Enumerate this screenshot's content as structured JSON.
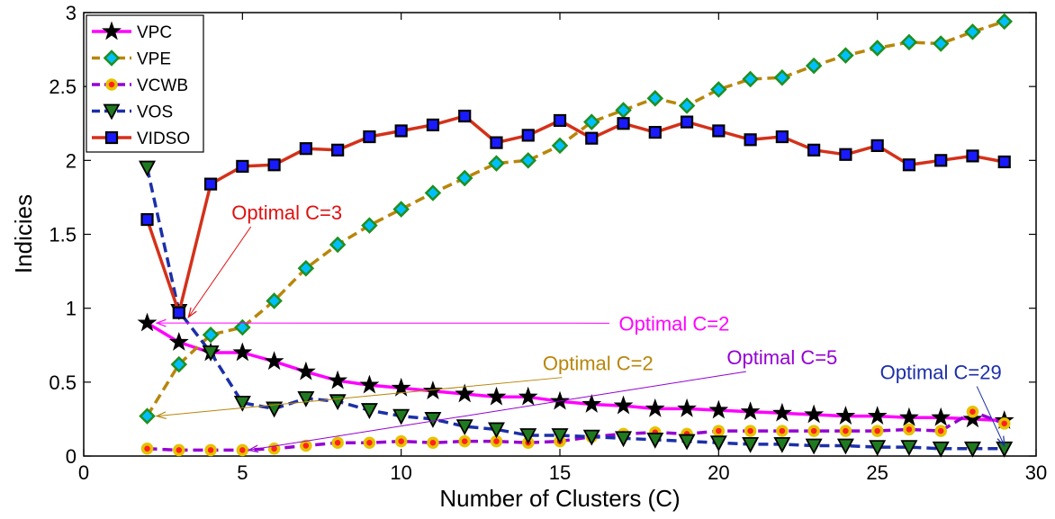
{
  "chart_data": {
    "type": "line",
    "xlabel": "Number of Clusters (C)",
    "ylabel": "Indicies",
    "xlim": [
      0,
      30
    ],
    "ylim": [
      0,
      3
    ],
    "xticks": [
      "0",
      "5",
      "10",
      "15",
      "20",
      "25",
      "30"
    ],
    "yticks": [
      "0",
      "0.5",
      "1",
      "1.5",
      "2",
      "2.5",
      "3"
    ],
    "x": [
      2,
      3,
      4,
      5,
      6,
      7,
      8,
      9,
      10,
      11,
      12,
      13,
      14,
      15,
      16,
      17,
      18,
      19,
      20,
      21,
      22,
      23,
      24,
      25,
      26,
      27,
      28,
      29
    ],
    "legend_position": "top-left",
    "series": [
      {
        "name": "VPC",
        "line_color": "#ff00ff",
        "marker": "star",
        "marker_face": "#000000",
        "dash": "solid",
        "values": [
          0.9,
          0.77,
          0.7,
          0.7,
          0.64,
          0.57,
          0.51,
          0.48,
          0.46,
          0.44,
          0.42,
          0.4,
          0.4,
          0.37,
          0.35,
          0.34,
          0.32,
          0.32,
          0.31,
          0.3,
          0.29,
          0.28,
          0.27,
          0.27,
          0.26,
          0.26,
          0.25,
          0.24
        ]
      },
      {
        "name": "VPE",
        "line_color": "#b8860b",
        "marker": "diamond",
        "marker_face": "#00bfff",
        "marker_edge": "#1f8f1f",
        "dash": "dashed",
        "values": [
          0.27,
          0.62,
          0.82,
          0.87,
          1.05,
          1.27,
          1.43,
          1.56,
          1.67,
          1.78,
          1.88,
          1.98,
          2.0,
          2.1,
          2.26,
          2.34,
          2.42,
          2.37,
          2.48,
          2.55,
          2.56,
          2.64,
          2.71,
          2.76,
          2.8,
          2.79,
          2.87,
          2.94
        ]
      },
      {
        "name": "VCWB",
        "line_color": "#9400d3",
        "marker": "circle",
        "marker_face": "#ff2020",
        "marker_edge": "#e6c200",
        "dash": "dashed",
        "values": [
          0.05,
          0.04,
          0.04,
          0.04,
          0.05,
          0.07,
          0.09,
          0.09,
          0.1,
          0.09,
          0.1,
          0.1,
          0.09,
          0.1,
          0.13,
          0.15,
          0.16,
          0.15,
          0.17,
          0.17,
          0.17,
          0.17,
          0.17,
          0.17,
          0.18,
          0.17,
          0.3,
          0.22
        ]
      },
      {
        "name": "VOS",
        "line_color": "#1c2fa8",
        "marker": "triangle-down",
        "marker_face": "#1f7a1f",
        "dash": "dashed",
        "values": [
          1.95,
          0.98,
          0.7,
          0.36,
          0.32,
          0.39,
          0.37,
          0.31,
          0.27,
          0.25,
          0.2,
          0.18,
          0.14,
          0.14,
          0.13,
          0.12,
          0.11,
          0.1,
          0.09,
          0.08,
          0.08,
          0.07,
          0.07,
          0.06,
          0.06,
          0.05,
          0.05,
          0.05
        ]
      },
      {
        "name": "VIDSO",
        "line_color": "#d4311a",
        "marker": "square",
        "marker_face": "#1a1aff",
        "dash": "solid",
        "values": [
          1.6,
          0.97,
          1.84,
          1.96,
          1.97,
          2.08,
          2.07,
          2.16,
          2.2,
          2.24,
          2.3,
          2.12,
          2.17,
          2.27,
          2.15,
          2.25,
          2.19,
          2.26,
          2.2,
          2.14,
          2.16,
          2.07,
          2.04,
          2.1,
          1.97,
          2.0,
          2.03,
          1.99
        ]
      }
    ],
    "annotations": [
      {
        "text": "Optimal C=3",
        "color": "#e01010",
        "text_x": 6.4,
        "text_y": 1.6,
        "arrow_to": [
          3.3,
          0.94
        ]
      },
      {
        "text": "Optimal C=2",
        "color": "#ff00ff",
        "text_x": 18.6,
        "text_y": 0.85,
        "arrow_to": [
          2.3,
          0.9
        ]
      },
      {
        "text": "Optimal C=2",
        "color": "#b8860b",
        "text_x": 16.2,
        "text_y": 0.58,
        "arrow_to": [
          2.3,
          0.27
        ]
      },
      {
        "text": "Optimal C=5",
        "color": "#9400d3",
        "text_x": 22.0,
        "text_y": 0.62,
        "arrow_to": [
          5.2,
          0.04
        ]
      },
      {
        "text": "Optimal C=29",
        "color": "#1c2fa8",
        "text_x": 27.0,
        "text_y": 0.52,
        "arrow_to": [
          29.0,
          0.07
        ]
      }
    ]
  }
}
